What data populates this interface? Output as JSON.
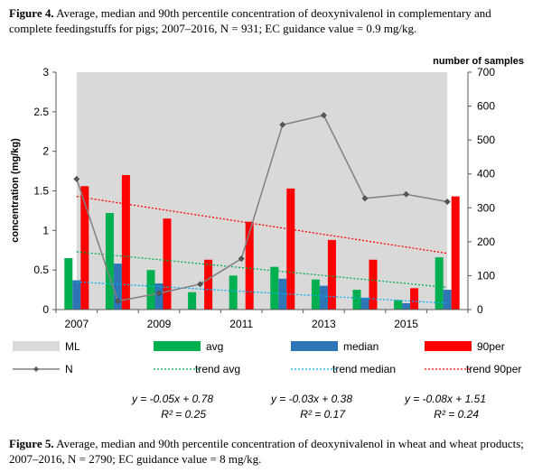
{
  "captions": {
    "top_label": "Figure 4.",
    "top_text": "Average, median and 90th percentile concentration of deoxynivalenol in complementary and complete feedingstuffs for pigs; 2007–2016, N = 931; EC guidance value = 0.9 mg/kg.",
    "bottom_label": "Figure 5.",
    "bottom_text": "Average, median and 90th percentile concentration of deoxynivalenol in wheat and wheat products; 2007–2016, N = 2790; EC guidance value = 8 mg/kg."
  },
  "chart_data": {
    "type": "bar",
    "categories": [
      "2007",
      "2008",
      "2009",
      "2010",
      "2011",
      "2012",
      "2013",
      "2014",
      "2015",
      "2016"
    ],
    "x_tick_labels": [
      "2007",
      "2009",
      "2011",
      "2013",
      "2015"
    ],
    "ylabel": "concentration (mg/kg)",
    "y2label": "number of samples",
    "ylim": [
      0,
      3
    ],
    "y2lim": [
      0,
      700
    ],
    "y_ticks": [
      "0",
      "0.5",
      "1",
      "1.5",
      "2",
      "2.5",
      "3"
    ],
    "y2_ticks": [
      "0",
      "100",
      "200",
      "300",
      "400",
      "500",
      "600",
      "700"
    ],
    "ml_band": {
      "name": "ML",
      "from": "2007",
      "to": "2016",
      "value": 3,
      "color": "#d9d9d9"
    },
    "series": [
      {
        "name": "avg",
        "color": "#00b050",
        "values": [
          0.65,
          1.22,
          0.5,
          0.22,
          0.43,
          0.54,
          0.38,
          0.25,
          0.12,
          0.66
        ]
      },
      {
        "name": "median",
        "color": "#2e75b6",
        "values": [
          0.37,
          0.58,
          0.33,
          0.0,
          0.0,
          0.39,
          0.3,
          0.15,
          0.08,
          0.25
        ]
      },
      {
        "name": "90per",
        "color": "#ff0000",
        "values": [
          1.56,
          1.7,
          1.15,
          0.63,
          1.11,
          1.53,
          0.88,
          0.63,
          0.27,
          1.43
        ]
      }
    ],
    "n_series": {
      "name": "N",
      "color": "#808080",
      "axis": "right",
      "values": [
        385,
        25,
        48,
        75,
        150,
        545,
        573,
        328,
        340,
        318
      ]
    },
    "trends": [
      {
        "name": "trend avg",
        "color": "#00b050",
        "slope": -0.05,
        "intercept": 0.78,
        "equation": "y = -0.05x + 0.78",
        "r2": "R² = 0.25"
      },
      {
        "name": "trend median",
        "color": "#00b0f0",
        "slope": -0.03,
        "intercept": 0.38,
        "equation": "y = -0.03x + 0.38",
        "r2": "R² = 0.17"
      },
      {
        "name": "trend 90per",
        "color": "#ff0000",
        "slope": -0.08,
        "intercept": 1.51,
        "equation": "y = -0.08x + 1.51",
        "r2": "R² = 0.24"
      }
    ],
    "legend": [
      "ML",
      "avg",
      "median",
      "90per",
      "N",
      "trend avg",
      "trend median",
      "trend 90per"
    ],
    "grid": false
  }
}
